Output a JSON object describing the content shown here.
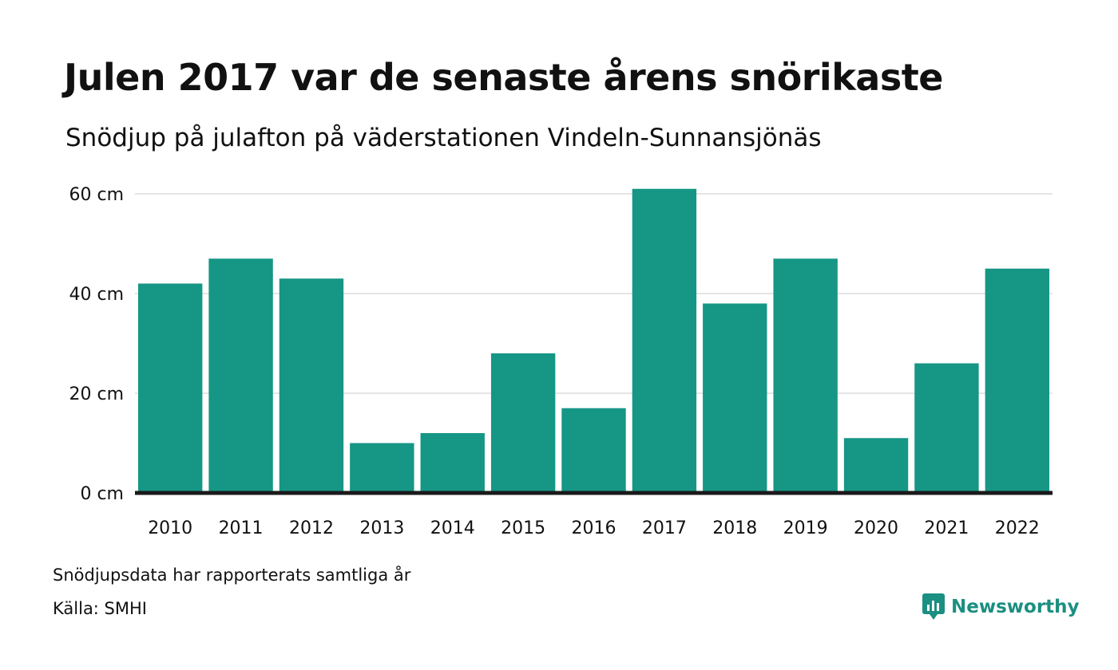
{
  "title": "Julen 2017 var de senaste årens snörikaste",
  "subtitle": "Snödjup på julafton på väderstationen Vindeln-Sunnansjönäs",
  "notes": {
    "reported": "Snödjupsdata har rapporterats samtliga år",
    "source": "Källa: SMHI"
  },
  "brand": {
    "name": "Newsworthy",
    "icon": "newsworthy-logo-icon"
  },
  "colors": {
    "bar": "#169685",
    "grid": "#e5e5e5",
    "baseline": "#1a1a1a",
    "brand": "#1b8f81"
  },
  "chart_data": {
    "type": "bar",
    "title": "Julen 2017 var de senaste årens snörikaste",
    "subtitle": "Snödjup på julafton på väderstationen Vindeln-Sunnansjönäs",
    "xlabel": "",
    "ylabel": "",
    "categories": [
      "2010",
      "2011",
      "2012",
      "2013",
      "2014",
      "2015",
      "2016",
      "2017",
      "2018",
      "2019",
      "2020",
      "2021",
      "2022"
    ],
    "values": [
      42,
      47,
      43,
      10,
      12,
      28,
      17,
      61,
      38,
      47,
      11,
      26,
      45
    ],
    "ylim": [
      0,
      60
    ],
    "yticks": [
      0,
      20,
      40,
      60
    ],
    "ytick_labels": [
      "0 cm",
      "20 cm",
      "40 cm",
      "60 cm"
    ],
    "grid": true,
    "legend": "none"
  }
}
